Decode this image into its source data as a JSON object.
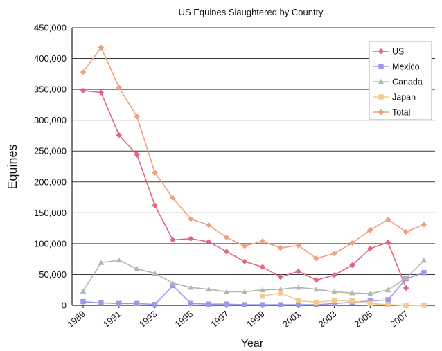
{
  "chart_data": {
    "type": "line",
    "title": "US Equines Slaughtered by Country",
    "xlabel": "Year",
    "ylabel": "Equines",
    "x": [
      1989,
      1990,
      1991,
      1992,
      1993,
      1994,
      1995,
      1996,
      1997,
      1998,
      1999,
      2000,
      2001,
      2002,
      2003,
      2004,
      2005,
      2006,
      2007,
      2008
    ],
    "x_tick_labels": [
      "1989",
      "1991",
      "1993",
      "1995",
      "1997",
      "1999",
      "2001",
      "2003",
      "2005",
      "2007"
    ],
    "xlim": [
      1989,
      2008
    ],
    "ylim": [
      0,
      450000
    ],
    "y_ticks": [
      0,
      50000,
      100000,
      150000,
      200000,
      250000,
      300000,
      350000,
      400000,
      450000
    ],
    "y_tick_labels": [
      "0",
      "50,000",
      "100,000",
      "150,000",
      "200,000",
      "250,000",
      "300,000",
      "350,000",
      "400,000",
      "450,000"
    ],
    "grid": "horizontal",
    "legend_position": "top-right",
    "series": [
      {
        "name": "US",
        "color": "#e0677e",
        "marker": "diamond",
        "values": [
          348000,
          345000,
          276000,
          244000,
          162000,
          106000,
          108000,
          103000,
          87000,
          71000,
          62000,
          46000,
          55000,
          41000,
          49000,
          65000,
          92000,
          102000,
          28000,
          null
        ]
      },
      {
        "name": "Mexico",
        "color": "#9a9ae8",
        "marker": "square",
        "values": [
          6000,
          4000,
          3000,
          3000,
          1500,
          32000,
          3000,
          2000,
          2000,
          1000,
          1000,
          1000,
          1000,
          1000,
          3000,
          5000,
          7000,
          9000,
          43000,
          53000
        ]
      },
      {
        "name": "Canada",
        "color": "#b0b8b0",
        "marker": "triangle",
        "values": [
          23000,
          69000,
          73000,
          59000,
          52000,
          36000,
          29000,
          26000,
          22000,
          22000,
          25000,
          26000,
          29000,
          26000,
          22000,
          20000,
          19000,
          25000,
          44000,
          73000
        ]
      },
      {
        "name": "Japan",
        "color": "#f3c98f",
        "marker": "square",
        "values": [
          null,
          null,
          null,
          null,
          null,
          null,
          null,
          null,
          null,
          null,
          15000,
          20000,
          8000,
          5000,
          8000,
          7000,
          3000,
          1000,
          0,
          0
        ]
      },
      {
        "name": "Total",
        "color": "#eba27d",
        "marker": "diamond",
        "values": [
          378000,
          418000,
          353000,
          306000,
          215000,
          174000,
          140000,
          130000,
          110000,
          96000,
          104000,
          93000,
          97000,
          76000,
          84000,
          101000,
          122000,
          139000,
          119000,
          131000
        ]
      }
    ]
  }
}
